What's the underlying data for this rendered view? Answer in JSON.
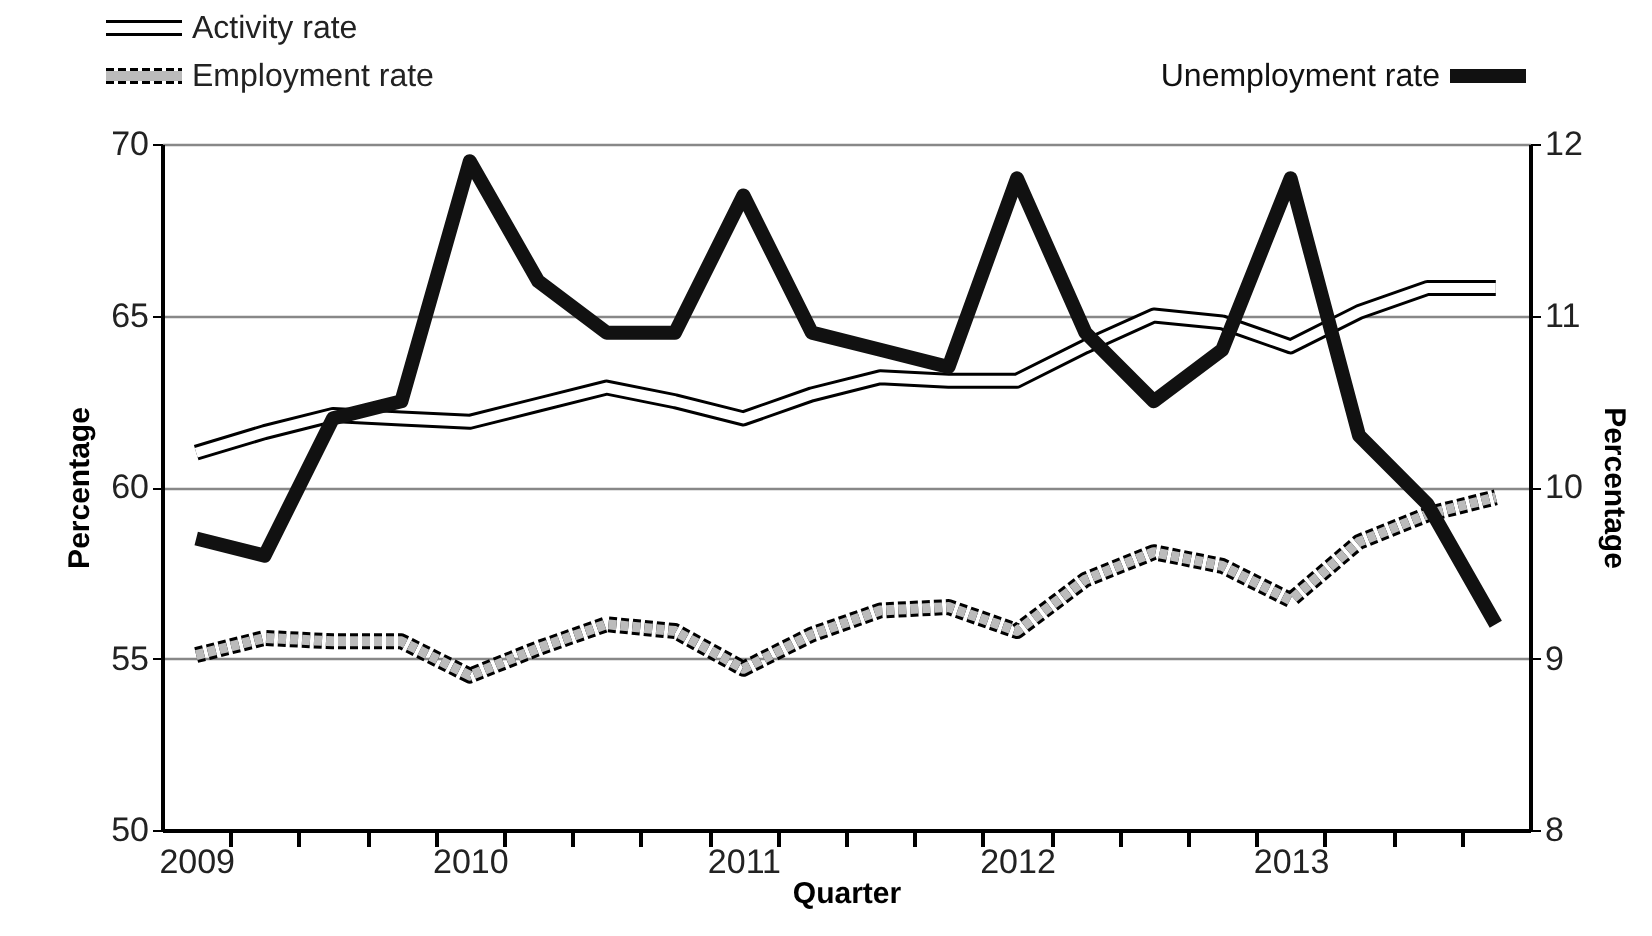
{
  "chart_data": {
    "type": "line",
    "categories": [
      "2009",
      null,
      null,
      null,
      "2010",
      null,
      null,
      null,
      "2011",
      null,
      null,
      null,
      "2012",
      null,
      null,
      null,
      "2013",
      null,
      null,
      null
    ],
    "xlabel": "Quarter",
    "ylabel": "Percentage",
    "y2label": "Percentage",
    "ylim": [
      50,
      70
    ],
    "yticks": [
      50,
      55,
      60,
      65,
      70
    ],
    "y2lim": [
      8,
      12
    ],
    "y2ticks": [
      8,
      9,
      10,
      11,
      12
    ],
    "grid": "y",
    "legend": "top",
    "marker": "none",
    "series": [
      {
        "name": "Activity rate",
        "color": "#ffffff",
        "line_style": "solid",
        "values": [
          61.0,
          61.6,
          62.1,
          62.0,
          61.9,
          62.4,
          62.9,
          62.5,
          62.0,
          62.7,
          63.2,
          63.1,
          63.1,
          64.1,
          65.0,
          64.8,
          64.1,
          65.1,
          65.8,
          65.8
        ]
      },
      {
        "name": "Employment rate",
        "color": "#bbbbbb",
        "line_style": "dashed",
        "values": [
          55.1,
          55.6,
          55.5,
          55.5,
          54.5,
          55.3,
          56.0,
          55.8,
          54.7,
          55.7,
          56.4,
          56.5,
          55.8,
          57.3,
          58.1,
          57.7,
          56.7,
          58.4,
          59.2,
          59.7
        ]
      },
      {
        "name": "Unemployment rate",
        "color": "#111111",
        "line_style": "solid",
        "axis": "y2",
        "values": [
          9.7,
          9.6,
          10.4,
          10.5,
          11.9,
          11.2,
          10.9,
          10.9,
          11.7,
          10.9,
          10.8,
          10.7,
          11.8,
          10.9,
          10.5,
          10.8,
          11.8,
          10.3,
          9.9,
          9.2
        ]
      }
    ]
  }
}
